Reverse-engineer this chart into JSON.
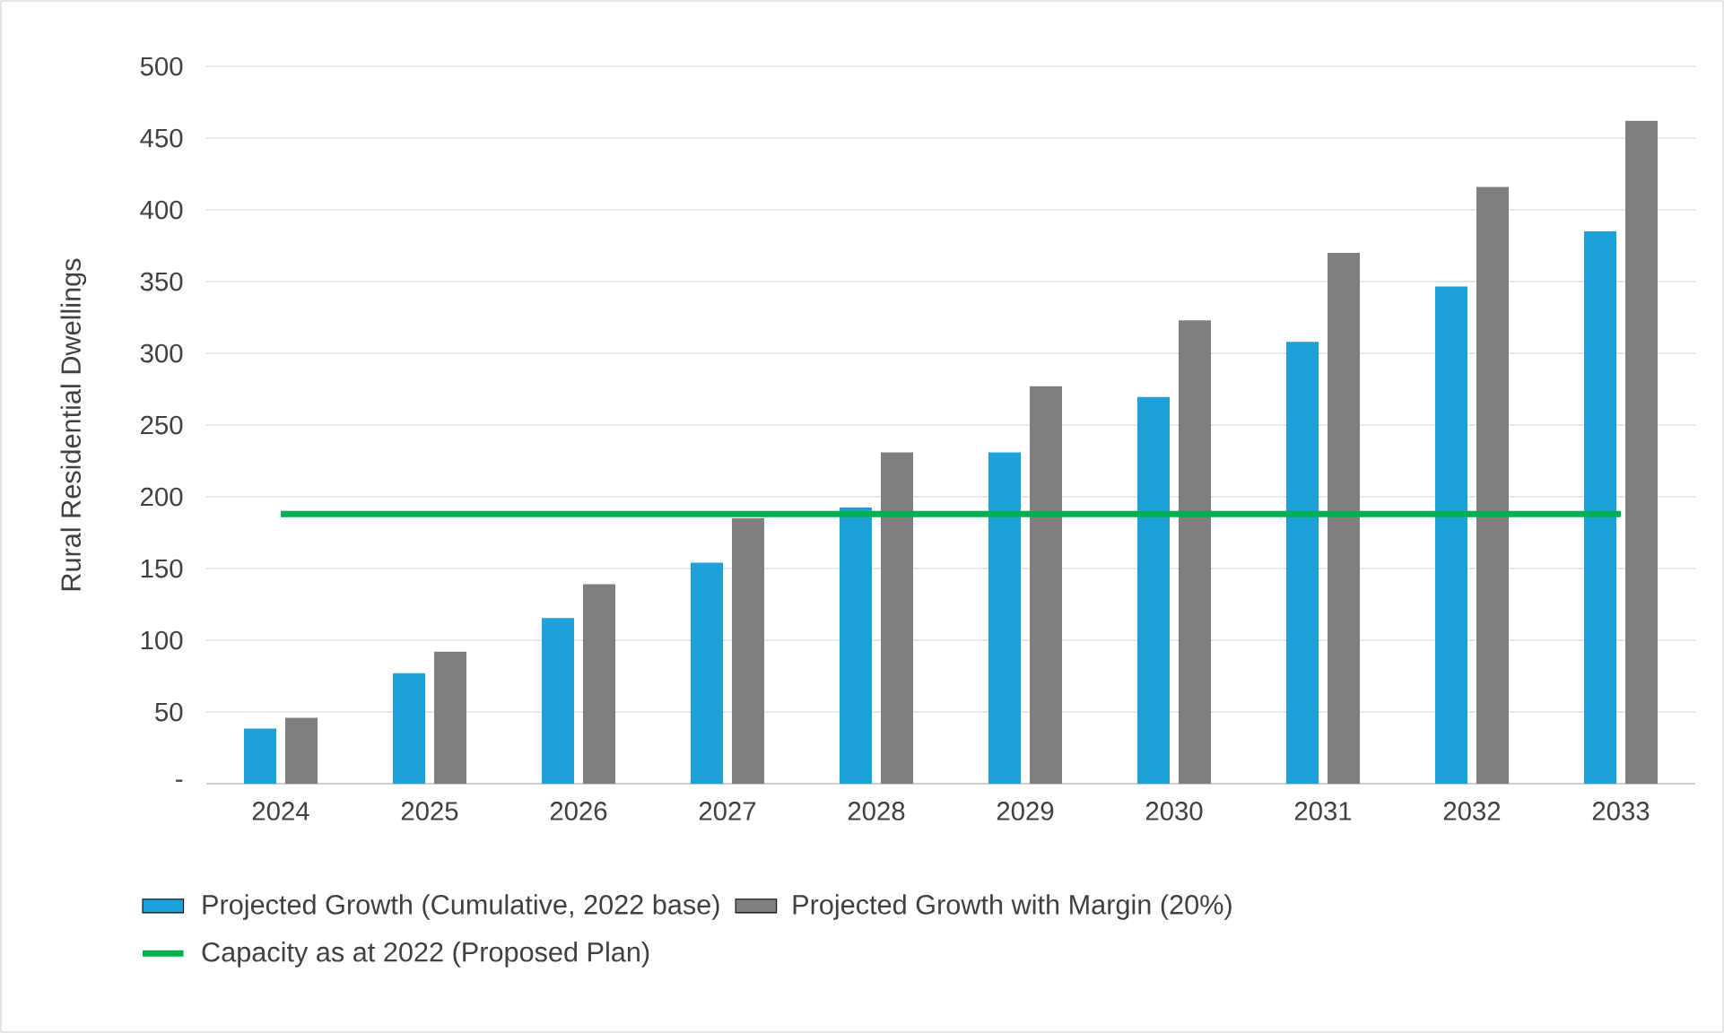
{
  "chart_data": {
    "type": "bar",
    "ylabel": "Rural Residential Dwellings",
    "categories": [
      "2024",
      "2025",
      "2026",
      "2027",
      "2028",
      "2029",
      "2030",
      "2031",
      "2032",
      "2033"
    ],
    "series": [
      {
        "name": "Projected Growth (Cumulative, 2022 base)",
        "color": "#1ea0d8",
        "values": [
          38.5,
          77,
          115.5,
          154,
          192.5,
          231,
          269.5,
          308,
          346.5,
          385
        ]
      },
      {
        "name": "Projected Growth with Margin (20%)",
        "color": "#7f7f7f",
        "values": [
          46,
          92,
          139,
          185,
          231,
          277,
          323,
          370,
          416,
          462
        ]
      },
      {
        "name": "Capacity as at 2022 (Proposed Plan)",
        "type": "line",
        "color": "#00b050",
        "values": [
          188,
          188,
          188,
          188,
          188,
          188,
          188,
          188,
          188,
          188
        ]
      }
    ],
    "ylim": [
      0,
      500
    ],
    "yticks": [
      {
        "value": 0,
        "label": "-"
      },
      50,
      100,
      150,
      200,
      250,
      300,
      350,
      400,
      450,
      500
    ],
    "grid": "y",
    "legend": "bottom"
  }
}
